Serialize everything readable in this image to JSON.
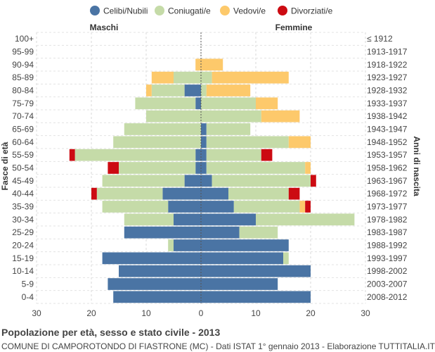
{
  "chart_data": {
    "type": "bar",
    "orientation": "horizontal-population-pyramid",
    "title": "Popolazione per età, sesso e stato civile - 2013",
    "subtitle": "COMUNE DI CAMPOROTONDO DI FIASTRONE (MC) - Dati ISTAT 1° gennaio 2013 - Elaborazione TUTTITALIA.IT",
    "left_label": "Maschi",
    "right_label": "Femmine",
    "ylabel_left": "Fasce di età",
    "ylabel_right": "Anni di nascita",
    "xlim": [
      -30,
      30
    ],
    "x_ticks": [
      "30",
      "20",
      "10",
      "0",
      "10",
      "20",
      "30"
    ],
    "grid": true,
    "legend_position": "top",
    "status_order": [
      "Celibi/Nubili",
      "Coniugati/e",
      "Vedovi/e",
      "Divorziati/e"
    ],
    "colors": {
      "Celibi/Nubili": "#4a74a4",
      "Coniugati/e": "#c5dba8",
      "Vedovi/e": "#fdc96b",
      "Divorziati/e": "#cc0b12"
    },
    "age_groups": [
      "100+",
      "95-99",
      "90-94",
      "85-89",
      "80-84",
      "75-79",
      "70-74",
      "65-69",
      "60-64",
      "55-59",
      "50-54",
      "45-49",
      "40-44",
      "35-39",
      "30-34",
      "25-29",
      "20-24",
      "15-19",
      "10-14",
      "5-9",
      "0-4"
    ],
    "birth_years": [
      "≤ 1912",
      "1913-1917",
      "1918-1922",
      "1923-1927",
      "1928-1932",
      "1933-1937",
      "1938-1942",
      "1943-1947",
      "1948-1952",
      "1953-1957",
      "1958-1962",
      "1963-1967",
      "1968-1972",
      "1973-1977",
      "1978-1982",
      "1983-1987",
      "1988-1992",
      "1993-1997",
      "1998-2002",
      "2003-2007",
      "2008-2012"
    ],
    "males": [
      [
        0,
        0,
        0,
        0
      ],
      [
        0,
        0,
        0,
        0
      ],
      [
        0,
        0,
        1,
        0
      ],
      [
        0,
        5,
        4,
        0
      ],
      [
        3,
        6,
        1,
        0
      ],
      [
        1,
        11,
        0,
        0
      ],
      [
        0,
        10,
        0,
        0
      ],
      [
        0,
        14,
        0,
        0
      ],
      [
        0,
        16,
        0,
        0
      ],
      [
        1,
        22,
        0,
        1
      ],
      [
        1,
        14,
        0,
        2
      ],
      [
        3,
        15,
        0,
        0
      ],
      [
        7,
        12,
        0,
        1
      ],
      [
        6,
        12,
        0,
        0
      ],
      [
        5,
        9,
        0,
        0
      ],
      [
        14,
        0,
        0,
        0
      ],
      [
        5,
        1,
        0,
        0
      ],
      [
        18,
        0,
        0,
        0
      ],
      [
        15,
        0,
        0,
        0
      ],
      [
        17,
        0,
        0,
        0
      ],
      [
        16,
        0,
        0,
        0
      ]
    ],
    "females": [
      [
        0,
        0,
        0,
        0
      ],
      [
        0,
        0,
        0,
        0
      ],
      [
        0,
        0,
        4,
        0
      ],
      [
        0,
        2,
        14,
        0
      ],
      [
        0,
        1,
        8,
        0
      ],
      [
        0,
        10,
        4,
        0
      ],
      [
        0,
        11,
        7,
        0
      ],
      [
        1,
        8,
        0,
        0
      ],
      [
        1,
        15,
        4,
        0
      ],
      [
        1,
        10,
        0,
        2
      ],
      [
        1,
        18,
        1,
        0
      ],
      [
        2,
        18,
        0,
        1
      ],
      [
        5,
        11,
        0,
        2
      ],
      [
        6,
        12,
        1,
        1
      ],
      [
        10,
        18,
        0,
        0
      ],
      [
        7,
        7,
        0,
        0
      ],
      [
        16,
        0,
        0,
        0
      ],
      [
        15,
        1,
        0,
        0
      ],
      [
        20,
        0,
        0,
        0
      ],
      [
        14,
        0,
        0,
        0
      ],
      [
        20,
        0,
        0,
        0
      ]
    ]
  }
}
